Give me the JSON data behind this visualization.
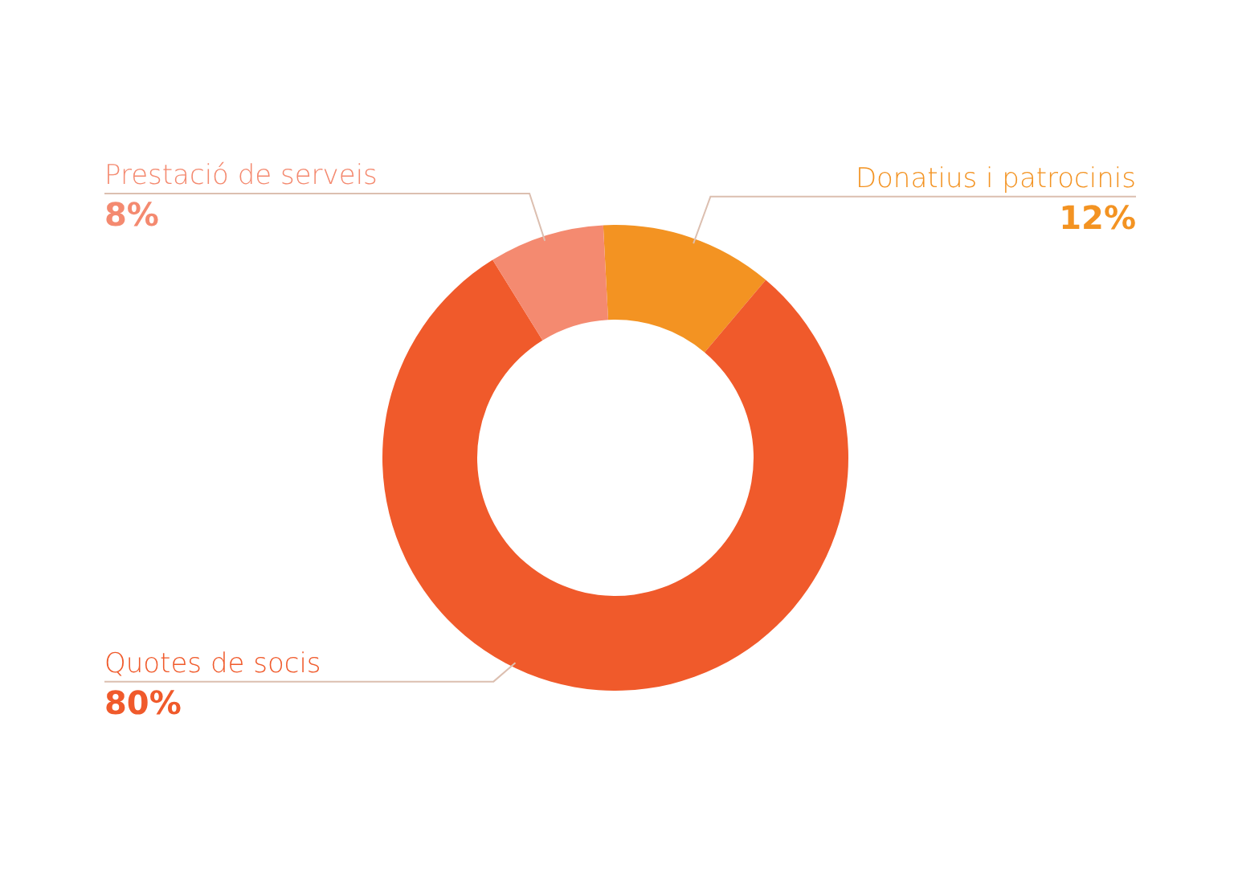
{
  "chart_data": {
    "type": "donut",
    "categories": [
      "Donatius i patrocinis",
      "Quotes de socis",
      "Prestació de serveis"
    ],
    "values": [
      12,
      80,
      8
    ],
    "colors": [
      "#f39322",
      "#f05a2b",
      "#f48a70"
    ],
    "value_labels": [
      "12%",
      "80%",
      "8%"
    ]
  }
}
